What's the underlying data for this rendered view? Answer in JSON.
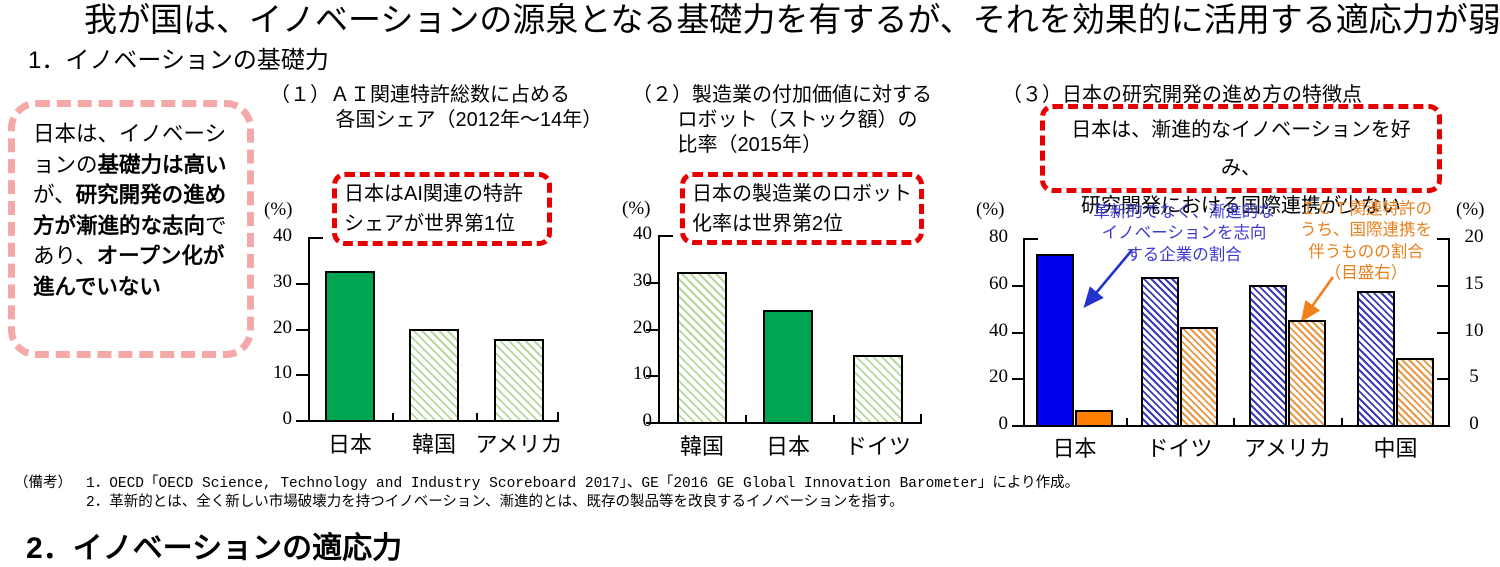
{
  "page": {
    "title": "我が国は、イノベーションの源泉となる基礎力を有するが、それを効果的に活用する適応力が弱い",
    "section_heading": "1．イノベーションの基礎力",
    "next_section_heading_partial": "2．イノベーションの適応力"
  },
  "summary_box": {
    "runs": [
      {
        "text": "日本は、イノベーションの",
        "bold": false
      },
      {
        "text": "基礎力は高い",
        "bold": true
      },
      {
        "text": "が、",
        "bold": false
      },
      {
        "text": "研究開発の進め方が漸進的な志向",
        "bold": true
      },
      {
        "text": "であり、",
        "bold": false
      },
      {
        "text": "オープン化が進んでいない",
        "bold": true
      }
    ]
  },
  "notes": {
    "label": "（備考）",
    "items": [
      "1．OECD「OECD Science, Technology and Industry Scoreboard 2017」、GE「2016 GE Global Innovation Barometer」により作成。",
      "2．革新的とは、全く新しい市場破壊力を持つイノベーション、漸進的とは、既存の製品等を改良するイノベーションを指す。"
    ]
  },
  "colors": {
    "accent_red": "#e80000",
    "summary_pink": "#f4a8a8",
    "green_solid": "#00a551",
    "blue_solid": "#0000ee",
    "orange_solid": "#ff7f00",
    "annotation_blue": "#3b3bcd",
    "annotation_orange": "#e8801e"
  },
  "chart_data": [
    {
      "type": "bar",
      "number": "（１）",
      "title": "ＡＩ関連特許総数に占める各国シェア（2012年～14年）",
      "title_display": "（１）ＡＩ関連特許総数に占める\n　　　 各国シェア（2012年～14年）",
      "callout": [
        "日本はAI関連の特許",
        "シェアが世界第1位"
      ],
      "callout_display": "日本はAI関連の特許\nシェアが世界第1位",
      "unit": "(%)",
      "categories": [
        "日本",
        "韓国",
        "アメリカ"
      ],
      "values": [
        32.5,
        20,
        17.8
      ],
      "fills": [
        "green-solid",
        "green-hatch",
        "green-hatch"
      ],
      "ylim": [
        0,
        40
      ],
      "yticks": [
        0,
        10,
        20,
        30,
        40
      ],
      "grid": false
    },
    {
      "type": "bar",
      "number": "（２）",
      "title": "製造業の付加価値に対するロボット（ストック額）の比率（2015年）",
      "title_display": "（２）製造業の付加価値に対する\n　　 ロボット（ストック額）の\n　　 比率（2015年）",
      "callout": [
        "日本の製造業のロボット",
        "化率は世界第2位"
      ],
      "callout_display": "日本の製造業のロボット\n化率は世界第2位",
      "unit": "(%)",
      "categories": [
        "韓国",
        "日本",
        "ドイツ"
      ],
      "values": [
        32,
        24,
        14.3
      ],
      "fills": [
        "green-hatch",
        "green-solid",
        "green-hatch"
      ],
      "ylim": [
        0,
        40
      ],
      "yticks": [
        0,
        10,
        20,
        30,
        40
      ],
      "grid": false
    },
    {
      "type": "grouped-bar-dual-axis",
      "number": "（３）",
      "title": "日本の研究開発の進め方の特徴点",
      "title_display": "（３）日本の研究開発の進め方の特徴点",
      "callout": [
        "日本は、漸進的なイノベーションを好み、",
        "研究開発における国際連携が少ない"
      ],
      "callout_display": "日本は、漸進的なイノベーションを好み、\n研究開発における国際連携が少ない",
      "left_unit": "(%)",
      "right_unit": "(%)",
      "categories": [
        "日本",
        "ドイツ",
        "アメリカ",
        "中国"
      ],
      "series": [
        {
          "name": "革新的でなく、漸進的なイノベーションを志向する企業の割合",
          "axis": "left",
          "values": [
            73,
            63.5,
            60,
            57.5
          ],
          "fills": [
            "blue-solid",
            "blue-hatch",
            "blue-hatch",
            "blue-hatch"
          ]
        },
        {
          "name": "ＩＣＴ関連特許のうち、国際連携を伴うものの割合（目盛右）",
          "axis": "right",
          "values": [
            1.6,
            10.5,
            11.2,
            7.2
          ],
          "fills": [
            "orange-solid",
            "orange-hatch",
            "orange-hatch",
            "orange-hatch"
          ]
        }
      ],
      "left_ylim": [
        0,
        80
      ],
      "left_yticks": [
        0,
        20,
        40,
        60,
        80
      ],
      "right_ylim": [
        0,
        20
      ],
      "right_yticks": [
        0,
        5,
        10,
        15,
        20
      ],
      "annotations": [
        {
          "display": "革新的でなく、漸進的な\nイノベーションを志向\nする企業の割合",
          "color": "#3b3bcd"
        },
        {
          "display": "ＩＣＴ関連特許の\nうち、国際連携を\n伴うものの割合\n（目盛右）",
          "color": "#e8801e"
        }
      ],
      "grid": false
    }
  ]
}
